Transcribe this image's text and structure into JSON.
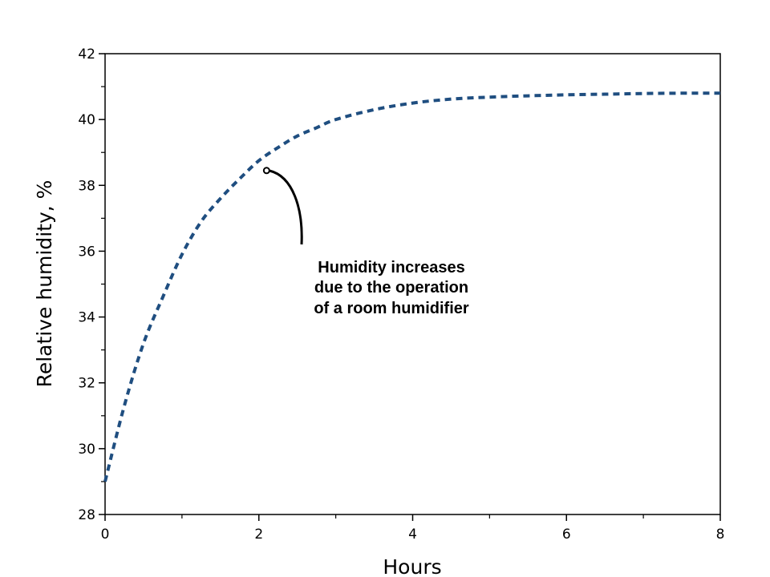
{
  "chart_data": {
    "type": "line",
    "title": "",
    "xlabel": "Hours",
    "ylabel": "Relative humidity, %",
    "xlim": [
      0,
      8
    ],
    "ylim": [
      28,
      42
    ],
    "x_ticks": [
      0,
      2,
      4,
      6,
      8
    ],
    "y_ticks": [
      28,
      30,
      32,
      34,
      36,
      38,
      40,
      42
    ],
    "grid": false,
    "legend": "none",
    "series": [
      {
        "color": "#1f4e80",
        "style": "dashed",
        "x": [
          0,
          0.25,
          0.5,
          0.75,
          1,
          1.25,
          1.5,
          1.75,
          2,
          2.25,
          2.5,
          2.75,
          3,
          3.5,
          4,
          4.5,
          5,
          5.5,
          6,
          6.5,
          7,
          7.5,
          8
        ],
        "y": [
          29.0,
          31.3,
          33.2,
          34.6,
          35.9,
          36.9,
          37.6,
          38.2,
          38.75,
          39.15,
          39.5,
          39.75,
          40.0,
          40.3,
          40.5,
          40.62,
          40.68,
          40.72,
          40.75,
          40.77,
          40.79,
          40.8,
          40.8
        ]
      }
    ],
    "annotation": {
      "lines": [
        "Humidity increases",
        "due to the operation",
        "of a room humidifier"
      ],
      "point": [
        2.1,
        38.45
      ]
    }
  }
}
